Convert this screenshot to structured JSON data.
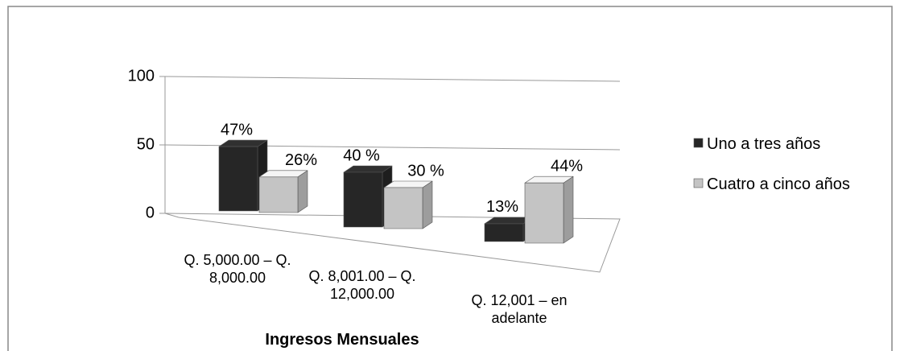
{
  "chart_data": {
    "type": "bar3d",
    "x_label": "Ingresos Mensuales",
    "categories": [
      "Q. 5,000.00 – Q. 8,000.00",
      "Q. 8,001.00 – Q. 12,000.00",
      "Q. 12,001 – en adelante"
    ],
    "series": [
      {
        "name": "Uno a tres años",
        "color": "#262626",
        "values": [
          47,
          40,
          13
        ],
        "value_labels": [
          "47%",
          "40 %",
          "13%"
        ]
      },
      {
        "name": "Cuatro a cinco años",
        "color": "#c4c4c4",
        "values": [
          26,
          30,
          44
        ],
        "value_labels": [
          "26%",
          "30 %",
          "44%"
        ]
      }
    ],
    "ylim": [
      0,
      100
    ],
    "yticks": [
      0,
      50,
      100
    ],
    "grid": true,
    "legend": "right"
  }
}
